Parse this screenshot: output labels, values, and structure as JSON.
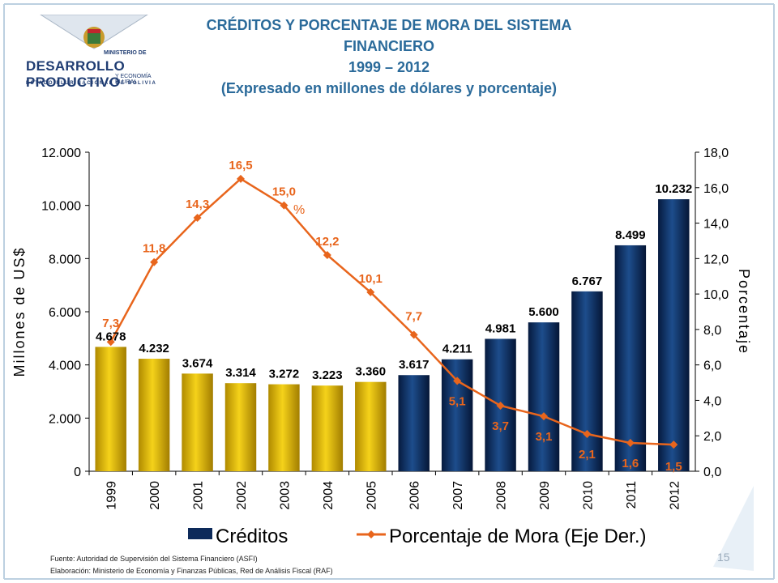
{
  "header": {
    "title_line1": "CRÉDITOS Y PORCENTAJE DE MORA DEL SISTEMA FINANCIERO",
    "title_line2": "1999 – 2012",
    "title_line3": "(Expresado en millones de dólares y porcentaje)"
  },
  "logo": {
    "line1": "MINISTERIO DE",
    "line2": "DESARROLLO PRODUCTIVO",
    "line3": "Y ECONOMÍA PLURAL",
    "line4": "ESTADO PLURINACIONAL DE BOLIVIA"
  },
  "chart_data": {
    "type": "bar",
    "categories": [
      "1999",
      "2000",
      "2001",
      "2002",
      "2003",
      "2004",
      "2005",
      "2006",
      "2007",
      "2008",
      "2009",
      "2010",
      "2011",
      "2012"
    ],
    "series": [
      {
        "name": "Créditos",
        "axis": "left",
        "values": [
          4678,
          4232,
          3674,
          3314,
          3272,
          3223,
          3360,
          3617,
          4211,
          4981,
          5600,
          6767,
          8499,
          10232
        ],
        "labels": [
          "4.678",
          "4.232",
          "3.674",
          "3.314",
          "3.272",
          "3.223",
          "3.360",
          "3.617",
          "4.211",
          "4.981",
          "5.600",
          "6.767",
          "8.499",
          "10.232"
        ]
      },
      {
        "name": "Porcentaje de Mora (Eje Der.)",
        "axis": "right",
        "type": "line",
        "values": [
          7.3,
          11.8,
          14.3,
          16.5,
          15.0,
          12.2,
          10.1,
          7.7,
          5.1,
          3.7,
          3.1,
          2.1,
          1.6,
          1.5
        ],
        "labels": [
          "7,3",
          "11,8",
          "14,3",
          "16,5",
          "15,0",
          "12,2",
          "10,1",
          "7,7",
          "5,1",
          "3,7",
          "3,1",
          "2,1",
          "1,6",
          "1,5"
        ]
      }
    ],
    "ylabel": "Millones de US$",
    "y2label": "Porcentaje",
    "ylim": [
      0,
      12000
    ],
    "y2lim": [
      0,
      18
    ],
    "yticks": [
      "0",
      "2.000",
      "4.000",
      "6.000",
      "8.000",
      "10.000",
      "12.000"
    ],
    "y2ticks": [
      "0,0",
      "2,0",
      "4,0",
      "6,0",
      "8,0",
      "10,0",
      "12,0",
      "14,0",
      "16,0",
      "18,0"
    ],
    "annotation": "%",
    "colors": {
      "gold": "#e0b400",
      "navy": "#0d2a5a",
      "line": "#e8651c"
    },
    "gold_years": 7,
    "legend": "bottom"
  },
  "footer": {
    "source": "Fuente: Autoridad de Supervisión del Sistema Financiero (ASFI)",
    "elaboration": "Elaboración: Ministerio de Economía y Finanzas Públicas, Red de Análisis Fiscal (RAF)",
    "page_number": "15"
  }
}
